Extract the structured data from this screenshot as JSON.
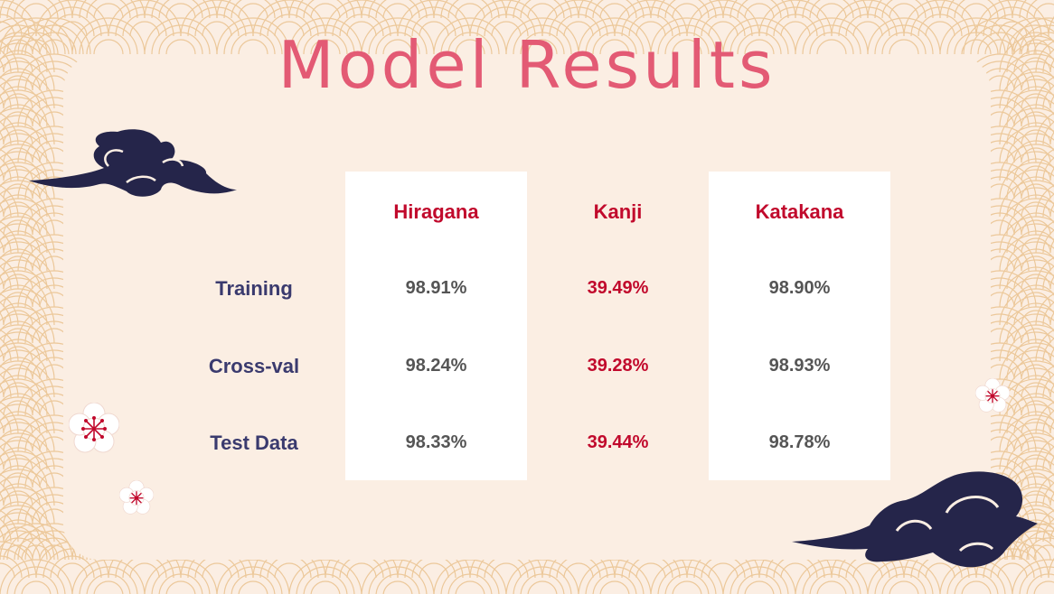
{
  "slide": {
    "title": "Model Results"
  },
  "table": {
    "columns": [
      "Hiragana",
      "Kanji",
      "Katakana"
    ],
    "rows": [
      {
        "label": "Training",
        "values": [
          "98.91%",
          "39.49%",
          "98.90%"
        ]
      },
      {
        "label": "Cross-val",
        "values": [
          "98.24%",
          "39.28%",
          "98.93%"
        ]
      },
      {
        "label": "Test Data",
        "values": [
          "98.33%",
          "39.44%",
          "98.78%"
        ]
      }
    ]
  },
  "colors": {
    "background": "#fbeee3",
    "title": "#e35a74",
    "header": "#c1092c",
    "row_label": "#3a3a6e",
    "value": "#555555",
    "accent_value": "#c1092c",
    "cloud": "#25254a",
    "pattern": "#ecc89a"
  },
  "decorations": {
    "icons": [
      "wave-pattern",
      "cloud-icon",
      "plum-blossom-icon"
    ]
  }
}
